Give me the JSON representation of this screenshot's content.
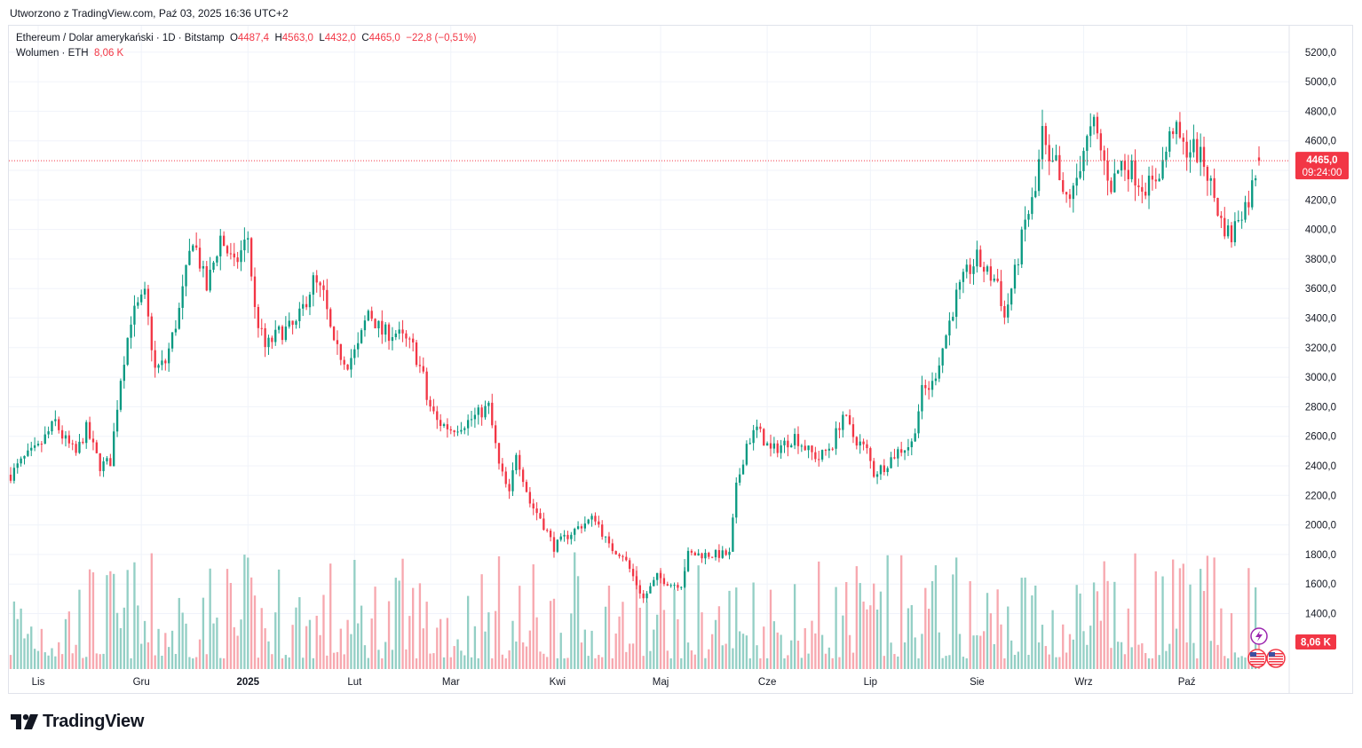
{
  "created_text": "Utworzono z TradingView.com, Paź 03, 2025 16:36 UTC+2",
  "legend": {
    "symbol": "Ethereum / Dolar amerykański · 1D · Bitstamp",
    "o_label": "O",
    "o_value": "4487,4",
    "h_label": "H",
    "h_value": "4563,0",
    "l_label": "L",
    "l_value": "4432,0",
    "c_label": "C",
    "c_value": "4465,0",
    "change": "−22,8 (−0,51%)",
    "volume_label": "Wolumen · ETH",
    "volume_value": "8,06 K"
  },
  "price_badge": {
    "price": "4465,0",
    "countdown": "09:24:00",
    "color": "#f23645"
  },
  "volume_badge": {
    "value": "8,06 K",
    "color": "#f23645"
  },
  "brand": "TradingView",
  "colors": {
    "up": "#089981",
    "down": "#f23645",
    "vol_up": "#93cfc5",
    "vol_down": "#f7a8af",
    "grid": "#f0f3fa",
    "text": "#131722"
  },
  "chart_data": {
    "type": "candlestick",
    "y_axis_ticks": [
      "5200,0",
      "5000,0",
      "4800,0",
      "4600,0",
      "4400,0",
      "4200,0",
      "4000,0",
      "3800,0",
      "3600,0",
      "3400,0",
      "3200,0",
      "3000,0",
      "2800,0",
      "2600,0",
      "2400,0",
      "2200,0",
      "2000,0",
      "1800,0",
      "1600,0",
      "1400,0"
    ],
    "x_axis_ticks": [
      "Lis",
      "Gru",
      "2025",
      "Lut",
      "Mar",
      "Kwi",
      "Maj",
      "Cze",
      "Lip",
      "Sie",
      "Wrz",
      "Paź"
    ],
    "ylim": [
      1280,
      5350
    ],
    "last_price": 4465,
    "last_close_line": "dotted",
    "anchors": [
      [
        "2024-10-24",
        2340
      ],
      [
        "2024-10-28",
        2450
      ],
      [
        "2024-11-01",
        2520
      ],
      [
        "2024-11-06",
        2700
      ],
      [
        "2024-11-08",
        2600
      ],
      [
        "2024-11-12",
        2480
      ],
      [
        "2024-11-15",
        2650
      ],
      [
        "2024-11-19",
        2400
      ],
      [
        "2024-11-22",
        2430
      ],
      [
        "2024-11-25",
        3000
      ],
      [
        "2024-11-28",
        3400
      ],
      [
        "2024-12-02",
        3550
      ],
      [
        "2024-12-05",
        3050
      ],
      [
        "2024-12-08",
        3100
      ],
      [
        "2024-12-12",
        3450
      ],
      [
        "2024-12-16",
        3950
      ],
      [
        "2024-12-20",
        3600
      ],
      [
        "2024-12-24",
        3950
      ],
      [
        "2024-12-28",
        3750
      ],
      [
        "2025-01-01",
        3950
      ],
      [
        "2025-01-03",
        3450
      ],
      [
        "2025-01-06",
        3200
      ],
      [
        "2025-01-10",
        3300
      ],
      [
        "2025-01-15",
        3350
      ],
      [
        "2025-01-20",
        3650
      ],
      [
        "2025-01-23",
        3550
      ],
      [
        "2025-01-26",
        3200
      ],
      [
        "2025-01-30",
        3100
      ],
      [
        "2025-02-02",
        3200
      ],
      [
        "2025-02-05",
        3450
      ],
      [
        "2025-02-09",
        3300
      ],
      [
        "2025-02-13",
        3300
      ],
      [
        "2025-02-18",
        3200
      ],
      [
        "2025-02-21",
        3000
      ],
      [
        "2025-02-22",
        2850
      ],
      [
        "2025-02-25",
        2700
      ],
      [
        "2025-03-01",
        2650
      ],
      [
        "2025-03-06",
        2700
      ],
      [
        "2025-03-09",
        2750
      ],
      [
        "2025-03-12",
        2800
      ],
      [
        "2025-03-15",
        2400
      ],
      [
        "2025-03-18",
        2200
      ],
      [
        "2025-03-20",
        2500
      ],
      [
        "2025-03-24",
        2150
      ],
      [
        "2025-03-27",
        2050
      ],
      [
        "2025-03-31",
        1850
      ],
      [
        "2025-04-04",
        1930
      ],
      [
        "2025-04-08",
        2000
      ],
      [
        "2025-04-12",
        2050
      ],
      [
        "2025-04-16",
        1850
      ],
      [
        "2025-04-20",
        1800
      ],
      [
        "2025-04-24",
        1600
      ],
      [
        "2025-04-26",
        1500
      ],
      [
        "2025-04-30",
        1650
      ],
      [
        "2025-05-04",
        1600
      ],
      [
        "2025-05-07",
        1600
      ],
      [
        "2025-05-09",
        1800
      ],
      [
        "2025-05-13",
        1800
      ],
      [
        "2025-05-17",
        1800
      ],
      [
        "2025-05-21",
        1800
      ],
      [
        "2025-05-23",
        2250
      ],
      [
        "2025-05-26",
        2550
      ],
      [
        "2025-05-29",
        2650
      ],
      [
        "2025-06-02",
        2500
      ],
      [
        "2025-06-06",
        2550
      ],
      [
        "2025-06-09",
        2600
      ],
      [
        "2025-06-13",
        2500
      ],
      [
        "2025-06-16",
        2450
      ],
      [
        "2025-06-20",
        2550
      ],
      [
        "2025-06-23",
        2750
      ],
      [
        "2025-06-26",
        2600
      ],
      [
        "2025-06-30",
        2500
      ],
      [
        "2025-07-02",
        2350
      ],
      [
        "2025-07-05",
        2400
      ],
      [
        "2025-07-09",
        2500
      ],
      [
        "2025-07-13",
        2550
      ],
      [
        "2025-07-16",
        2900
      ],
      [
        "2025-07-19",
        2950
      ],
      [
        "2025-07-22",
        3200
      ],
      [
        "2025-07-26",
        3550
      ],
      [
        "2025-07-29",
        3700
      ],
      [
        "2025-08-01",
        3800
      ],
      [
        "2025-08-04",
        3700
      ],
      [
        "2025-08-07",
        3650
      ],
      [
        "2025-08-09",
        3400
      ],
      [
        "2025-08-12",
        3700
      ],
      [
        "2025-08-15",
        4050
      ],
      [
        "2025-08-18",
        4250
      ],
      [
        "2025-08-20",
        4650
      ],
      [
        "2025-08-22",
        4400
      ],
      [
        "2025-08-24",
        4450
      ],
      [
        "2025-08-26",
        4200
      ],
      [
        "2025-08-29",
        4250
      ],
      [
        "2025-09-01",
        4550
      ],
      [
        "2025-09-04",
        4700
      ],
      [
        "2025-09-07",
        4450
      ],
      [
        "2025-09-09",
        4300
      ],
      [
        "2025-09-12",
        4450
      ],
      [
        "2025-09-15",
        4400
      ],
      [
        "2025-09-18",
        4300
      ],
      [
        "2025-09-21",
        4300
      ],
      [
        "2025-09-24",
        4450
      ],
      [
        "2025-09-27",
        4700
      ],
      [
        "2025-09-30",
        4550
      ],
      [
        "2025-10-03",
        4550
      ],
      [
        "2025-10-06",
        4450
      ],
      [
        "2025-10-08",
        4300
      ],
      [
        "2025-10-11",
        4050
      ],
      [
        "2025-10-14",
        3950
      ],
      [
        "2025-10-16",
        4100
      ],
      [
        "2025-10-19",
        4200
      ],
      [
        "2025-10-22",
        4487.4
      ]
    ],
    "last_candle": {
      "open": 4487.4,
      "high": 4563.0,
      "low": 4432.0,
      "close": 4465.0,
      "volume_k": 8.06
    }
  }
}
